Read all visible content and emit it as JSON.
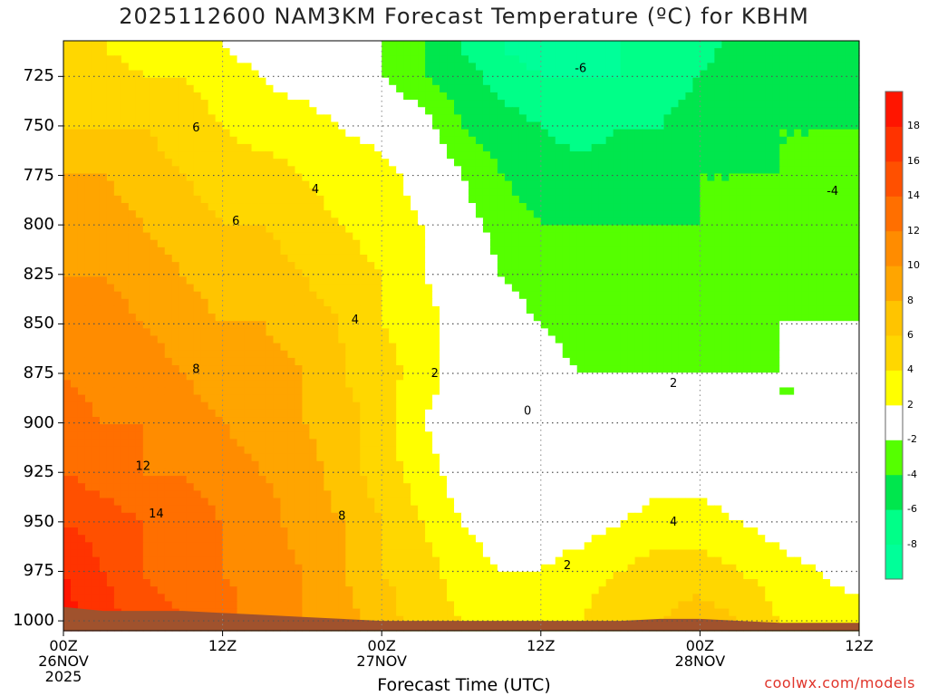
{
  "title": "2025112600 NAM3KM Forecast Temperature (ºC) for KBHM",
  "credit": "coolwx.com/models",
  "colors": {
    "ground": "#a0522d",
    "bins": [
      {
        "lo": -10,
        "hi": -8,
        "color": "#00ff99"
      },
      {
        "lo": -8,
        "hi": -6,
        "color": "#00ff88"
      },
      {
        "lo": -6,
        "hi": -4,
        "color": "#00e64d"
      },
      {
        "lo": -4,
        "hi": -2,
        "color": "#55ff00"
      },
      {
        "lo": -2,
        "hi": 2,
        "color": "#ffffff"
      },
      {
        "lo": 2,
        "hi": 4,
        "color": "#ffff00"
      },
      {
        "lo": 4,
        "hi": 6,
        "color": "#ffd700"
      },
      {
        "lo": 6,
        "hi": 8,
        "color": "#ffc400"
      },
      {
        "lo": 8,
        "hi": 10,
        "color": "#ffa500"
      },
      {
        "lo": 10,
        "hi": 12,
        "color": "#ff8c00"
      },
      {
        "lo": 12,
        "hi": 14,
        "color": "#ff6f00"
      },
      {
        "lo": 14,
        "hi": 16,
        "color": "#ff5000"
      },
      {
        "lo": 16,
        "hi": 18,
        "color": "#ff3300"
      },
      {
        "lo": 18,
        "hi": 20,
        "color": "#ff1500"
      }
    ],
    "zero_line": "#b0186b"
  },
  "chart_data": {
    "type": "heatmap",
    "title": "2025112600 NAM3KM Forecast Temperature (ºC) for KBHM",
    "xlabel": "Forecast Time (UTC)",
    "ylabel": "",
    "x_unit": "forecast hour",
    "xlim": [
      0,
      60
    ],
    "ylim": [
      1005,
      707
    ],
    "y_ticks": [
      725,
      750,
      775,
      800,
      825,
      850,
      875,
      900,
      925,
      950,
      975,
      1000
    ],
    "x_ticks": [
      {
        "hour": 0,
        "lines": [
          "00Z",
          "26NOV",
          "2025"
        ]
      },
      {
        "hour": 12,
        "lines": [
          "12Z"
        ]
      },
      {
        "hour": 24,
        "lines": [
          "00Z",
          "27NOV"
        ]
      },
      {
        "hour": 36,
        "lines": [
          "12Z"
        ]
      },
      {
        "hour": 48,
        "lines": [
          "00Z",
          "28NOV"
        ]
      },
      {
        "hour": 60,
        "lines": [
          "12Z"
        ]
      }
    ],
    "colorbar_labels": [
      18,
      16,
      14,
      12,
      10,
      8,
      6,
      4,
      2,
      -2,
      -4,
      -6,
      -8
    ],
    "contour_labels": [
      {
        "text": "6",
        "hour": 10,
        "pressure": 751
      },
      {
        "text": "6",
        "hour": 13,
        "pressure": 798
      },
      {
        "text": "4",
        "hour": 19,
        "pressure": 782
      },
      {
        "text": "8",
        "hour": 10,
        "pressure": 873
      },
      {
        "text": "4",
        "hour": 22,
        "pressure": 848
      },
      {
        "text": "2",
        "hour": 28,
        "pressure": 875
      },
      {
        "text": "0",
        "hour": 35,
        "pressure": 894
      },
      {
        "text": "-6",
        "hour": 39,
        "pressure": 721
      },
      {
        "text": "-4",
        "hour": 58,
        "pressure": 783
      },
      {
        "text": "2",
        "hour": 46,
        "pressure": 880
      },
      {
        "text": "12",
        "hour": 6,
        "pressure": 922
      },
      {
        "text": "14",
        "hour": 7,
        "pressure": 946
      },
      {
        "text": "8",
        "hour": 21,
        "pressure": 947
      },
      {
        "text": "4",
        "hour": 46,
        "pressure": 950
      },
      {
        "text": "2",
        "hour": 38,
        "pressure": 972
      }
    ],
    "grid_hours": [
      0,
      3,
      6,
      9,
      12,
      15,
      18,
      21,
      24,
      27,
      30,
      33,
      36,
      39,
      42,
      45,
      48,
      51,
      54,
      57,
      60
    ],
    "grid_pressures": [
      710,
      725,
      750,
      775,
      800,
      825,
      850,
      875,
      900,
      925,
      950,
      975,
      1000
    ],
    "temperature_c": [
      [
        4,
        4,
        3,
        3,
        2,
        1,
        0,
        -1,
        -2,
        -4,
        -6,
        -8,
        -9,
        -9,
        -8,
        -8,
        -7,
        -5,
        -5,
        -5,
        -5
      ],
      [
        5,
        5,
        4,
        4,
        3,
        2,
        1,
        0,
        -2,
        -4,
        -5,
        -7,
        -8,
        -8,
        -8,
        -7,
        -6,
        -5,
        -5,
        -5,
        -4
      ],
      [
        6,
        6,
        6,
        5,
        4,
        3,
        3,
        2,
        1,
        -1,
        -4,
        -5,
        -6,
        -7,
        -6,
        -6,
        -5,
        -5,
        -4,
        -4,
        -4
      ],
      [
        8,
        8,
        7,
        6,
        5,
        5,
        4,
        3,
        3,
        1,
        -2,
        -4,
        -5,
        -5,
        -5,
        -5,
        -4,
        -4,
        -4,
        -4,
        -4
      ],
      [
        9,
        9,
        8,
        7,
        6,
        6,
        5,
        4,
        3,
        2,
        -1,
        -3,
        -4,
        -4,
        -4,
        -4,
        -4,
        -4,
        -3,
        -3,
        -3
      ],
      [
        10,
        10,
        9,
        8,
        7,
        7,
        6,
        5,
        4,
        2,
        1,
        -2,
        -3,
        -4,
        -4,
        -3,
        -3,
        -3,
        -3,
        -3,
        -3
      ],
      [
        11,
        11,
        10,
        9,
        8,
        8,
        7,
        6,
        4,
        3,
        1,
        -1,
        -2,
        -3,
        -3,
        -3,
        -3,
        -3,
        -2,
        -2,
        -2
      ],
      [
        12,
        11,
        11,
        10,
        9,
        9,
        8,
        6,
        5,
        3,
        1,
        0,
        -1,
        -2,
        -2,
        -2,
        -2,
        -2,
        -2,
        -2,
        -2
      ],
      [
        13,
        12,
        12,
        11,
        10,
        9,
        8,
        7,
        5,
        2,
        1,
        0,
        -1,
        -1,
        -1,
        -1,
        -1,
        -1,
        -2,
        -2,
        -2
      ],
      [
        14,
        13,
        12,
        12,
        11,
        10,
        9,
        7,
        5,
        3,
        1,
        0,
        0,
        0,
        0,
        1,
        1,
        0,
        0,
        -1,
        -1
      ],
      [
        16,
        15,
        14,
        13,
        12,
        11,
        9,
        8,
        6,
        4,
        2,
        1,
        1,
        1,
        2,
        3,
        3,
        2,
        1,
        0,
        0
      ],
      [
        18,
        16,
        14,
        13,
        12,
        11,
        10,
        8,
        6,
        5,
        3,
        2,
        2,
        3,
        4,
        5,
        5,
        4,
        3,
        2,
        1
      ],
      [
        19,
        17,
        15,
        14,
        13,
        11,
        10,
        9,
        7,
        5,
        4,
        3,
        3,
        4,
        6,
        6,
        7,
        6,
        4,
        3,
        3
      ]
    ],
    "ground_pressure": [
      993,
      995,
      995,
      995,
      996,
      997,
      998,
      999,
      1000,
      1000,
      1000,
      1000,
      1000,
      1000,
      1000,
      999,
      999,
      1000,
      1001,
      1001,
      1001
    ]
  }
}
